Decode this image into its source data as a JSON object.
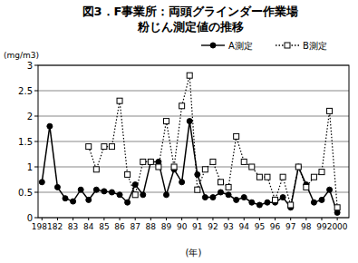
{
  "chart_data": {
    "type": "line",
    "title": [
      "図3．F事業所：両頭グラインダー作業場",
      "粉じん測定値の推移"
    ],
    "y_label": "(mg/m3)",
    "x_label": "(年)",
    "categories": [
      "1981",
      null,
      "82",
      null,
      "83",
      null,
      "84",
      null,
      "85",
      null,
      "86",
      null,
      "87",
      null,
      "88",
      null,
      "89",
      null,
      "90",
      null,
      "91",
      null,
      "92",
      null,
      "93",
      null,
      "94",
      null,
      "95",
      null,
      "96",
      null,
      "97",
      null,
      "98",
      null,
      "99",
      null,
      "2000",
      null
    ],
    "series": [
      {
        "name": "A測定",
        "color": "#000000",
        "marker": "circle",
        "line_style": "solid",
        "values": [
          0.7,
          1.8,
          0.6,
          0.38,
          0.32,
          0.55,
          0.35,
          0.55,
          0.52,
          0.5,
          0.45,
          0.3,
          0.65,
          0.45,
          1.1,
          1.1,
          0.45,
          0.95,
          0.7,
          1.9,
          0.85,
          0.4,
          0.4,
          0.5,
          0.45,
          0.35,
          0.4,
          0.3,
          0.25,
          0.3,
          0.3,
          0.4,
          0.2,
          1.0,
          0.65,
          0.3,
          0.35,
          0.55,
          0.1,
          null
        ]
      },
      {
        "name": "B測定",
        "color": "#000000",
        "marker": "square",
        "line_style": "dotted",
        "values": [
          null,
          null,
          null,
          null,
          null,
          null,
          1.4,
          0.95,
          1.4,
          1.4,
          2.3,
          0.85,
          0.45,
          1.1,
          1.1,
          1.0,
          1.9,
          1.0,
          2.2,
          2.8,
          0.55,
          0.95,
          1.1,
          0.7,
          0.6,
          1.6,
          1.1,
          1.0,
          0.8,
          0.8,
          0.35,
          0.8,
          0.25,
          1.0,
          0.6,
          0.8,
          0.9,
          2.1,
          0.2,
          null
        ]
      }
    ],
    "ylim": [
      0,
      3
    ],
    "yticks": [
      0,
      0.5,
      1,
      1.5,
      2,
      2.5,
      3
    ],
    "grid": true,
    "legend": "top-right"
  }
}
